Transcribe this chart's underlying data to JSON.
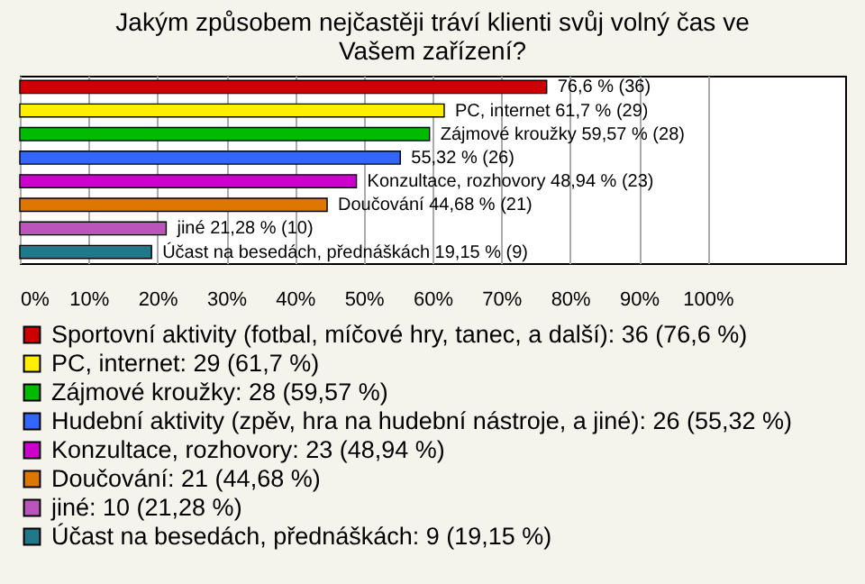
{
  "chart_data": {
    "type": "bar",
    "orientation": "horizontal",
    "title": "Jakým způsobem nejčastěji tráví klienti svůj volný čas ve Vašem zařízení?",
    "categories": [
      null,
      null,
      null,
      null,
      null,
      null,
      null,
      null
    ],
    "series": [
      {
        "name": "Sportovní aktivity (fotbal, míčové hry, tanec, a další): 36 (76,6 %)",
        "color": "#cc0000",
        "values": [
          76.6,
          null,
          null,
          null,
          null,
          null,
          null,
          null
        ],
        "value_labels": [
          "76,6 % (36)",
          null,
          null,
          null,
          null,
          null,
          null,
          null
        ]
      },
      {
        "name": "PC, internet: 29 (61,7 %)",
        "color": "#ffee00",
        "values": [
          null,
          61.7,
          null,
          null,
          null,
          null,
          null,
          null
        ],
        "value_labels": [
          null,
          "PC, internet 61,7 % (29)",
          null,
          null,
          null,
          null,
          null,
          null
        ]
      },
      {
        "name": "Zájmové kroužky: 28 (59,57 %)",
        "color": "#00bb00",
        "values": [
          null,
          null,
          59.57,
          null,
          null,
          null,
          null,
          null
        ],
        "value_labels": [
          null,
          null,
          "Zájmové kroužky 59,57 % (28)",
          null,
          null,
          null,
          null,
          null
        ]
      },
      {
        "name": "Hudební aktivity (zpěv, hra na hudební nástroje, a jiné): 26 (55,32 %)",
        "color": "#3366ff",
        "values": [
          null,
          null,
          null,
          55.32,
          null,
          null,
          null,
          null
        ],
        "value_labels": [
          null,
          null,
          null,
          "55,32 % (26)",
          null,
          null,
          null,
          null
        ]
      },
      {
        "name": "Konzultace, rozhovory: 23 (48,94 %)",
        "color": "#cc00cc",
        "values": [
          null,
          null,
          null,
          null,
          48.94,
          null,
          null,
          null
        ],
        "value_labels": [
          null,
          null,
          null,
          null,
          "Konzultace, rozhovory 48,94 % (23)",
          null,
          null,
          null
        ]
      },
      {
        "name": "Doučování: 21 (44,68 %)",
        "color": "#dd7700",
        "values": [
          null,
          null,
          null,
          null,
          null,
          44.68,
          null,
          null
        ],
        "value_labels": [
          null,
          null,
          null,
          null,
          null,
          "Doučování 44,68 % (21)",
          null,
          null
        ]
      },
      {
        "name": "jiné: 10 (21,28 %)",
        "color": "#bb55bb",
        "values": [
          null,
          null,
          null,
          null,
          null,
          null,
          21.28,
          null
        ],
        "value_labels": [
          null,
          null,
          null,
          null,
          null,
          null,
          "jiné 21,28 % (10)",
          null
        ]
      },
      {
        "name": "Účast na besedách, přednáškách: 9 (19,15 %)",
        "color": "#227788",
        "values": [
          null,
          null,
          null,
          null,
          null,
          null,
          null,
          19.15
        ],
        "value_labels": [
          null,
          null,
          null,
          null,
          null,
          null,
          null,
          "Účast na besedách, přednáškách 19,15 % (9)"
        ]
      }
    ],
    "xlim": [
      0,
      120
    ],
    "xticks": [
      {
        "value": 0,
        "label": "0%"
      },
      {
        "value": 10,
        "label": "10%"
      },
      {
        "value": 20,
        "label": "20%"
      },
      {
        "value": 30,
        "label": "30%"
      },
      {
        "value": 40,
        "label": "40%"
      },
      {
        "value": 50,
        "label": "50%"
      },
      {
        "value": 60,
        "label": "60%"
      },
      {
        "value": 70,
        "label": "70%"
      },
      {
        "value": 80,
        "label": "80%"
      },
      {
        "value": 90,
        "label": "90%"
      },
      {
        "value": 100,
        "label": "100%"
      }
    ],
    "grid": "x",
    "legend": "bottom",
    "tick_labels": "x"
  }
}
